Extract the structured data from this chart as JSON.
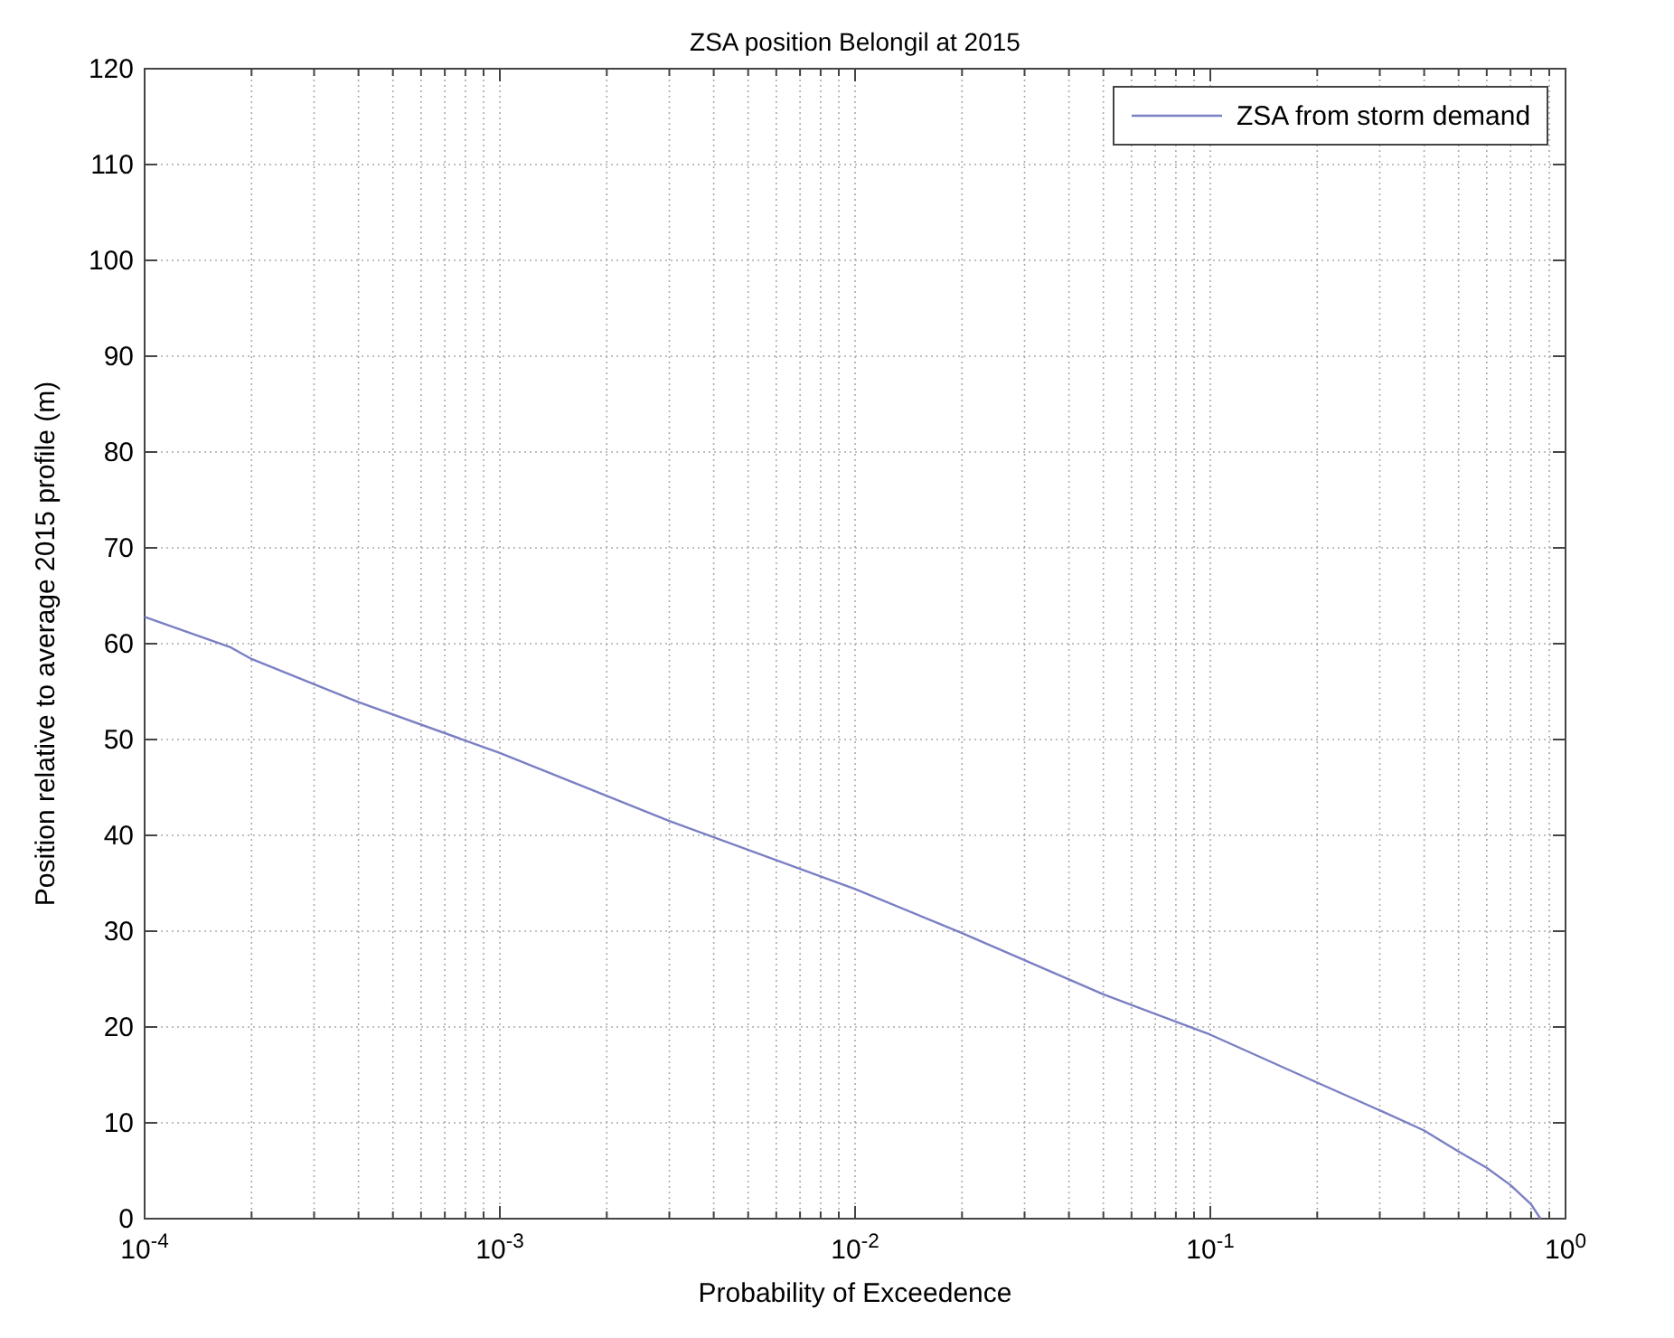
{
  "chart_data": {
    "type": "line",
    "title": "ZSA position Belongil at 2015",
    "xlabel": "Probability of Exceedence",
    "ylabel": "Position relative to average 2015 profile (m)",
    "log": "x",
    "grid": true,
    "legend": "top right",
    "line_style": "solid",
    "xlim": [
      0.0001,
      1
    ],
    "ylim": [
      0,
      120
    ],
    "xticks": [
      {
        "value": 0.0001,
        "label": "10$^{-4}$"
      },
      {
        "value": 0.0002,
        "label": null
      },
      {
        "value": 0.0003,
        "label": null
      },
      {
        "value": 0.0004,
        "label": null
      },
      {
        "value": 0.0005,
        "label": null
      },
      {
        "value": 0.0006,
        "label": null
      },
      {
        "value": 0.0007,
        "label": null
      },
      {
        "value": 0.0008,
        "label": null
      },
      {
        "value": 0.0009,
        "label": null
      },
      {
        "value": 0.001,
        "label": "10$^{-3}$"
      },
      {
        "value": 0.002,
        "label": null
      },
      {
        "value": 0.003,
        "label": null
      },
      {
        "value": 0.004,
        "label": null
      },
      {
        "value": 0.005,
        "label": null
      },
      {
        "value": 0.006,
        "label": null
      },
      {
        "value": 0.007,
        "label": null
      },
      {
        "value": 0.008,
        "label": null
      },
      {
        "value": 0.009,
        "label": null
      },
      {
        "value": 0.01,
        "label": "10$^{-2}$"
      },
      {
        "value": 0.02,
        "label": null
      },
      {
        "value": 0.03,
        "label": null
      },
      {
        "value": 0.04,
        "label": null
      },
      {
        "value": 0.05,
        "label": null
      },
      {
        "value": 0.06,
        "label": null
      },
      {
        "value": 0.07,
        "label": null
      },
      {
        "value": 0.08,
        "label": null
      },
      {
        "value": 0.09,
        "label": null
      },
      {
        "value": 0.1,
        "label": "10$^{-1}$"
      },
      {
        "value": 0.2,
        "label": null
      },
      {
        "value": 0.3,
        "label": null
      },
      {
        "value": 0.4,
        "label": null
      },
      {
        "value": 0.5,
        "label": null
      },
      {
        "value": 0.6,
        "label": null
      },
      {
        "value": 0.7,
        "label": null
      },
      {
        "value": 0.8,
        "label": null
      },
      {
        "value": 0.9,
        "label": null
      },
      {
        "value": 1,
        "label": "10$^{0}$"
      }
    ],
    "yticks": [
      0,
      10,
      20,
      30,
      40,
      50,
      60,
      70,
      80,
      90,
      100,
      110,
      120
    ],
    "series": [
      {
        "name": "ZSA from storm demand",
        "color": "#7b7fc4",
        "x": [
          0.0001,
          0.000175,
          0.0002,
          0.0004,
          0.001,
          0.003,
          0.01,
          0.02,
          0.05,
          0.1,
          0.2,
          0.3,
          0.4,
          0.5,
          0.6,
          0.7,
          0.8,
          0.85
        ],
        "values": [
          62.8,
          59.6,
          58.4,
          53.9,
          48.6,
          41.5,
          34.4,
          29.8,
          23.4,
          19.2,
          14.2,
          11.3,
          9.2,
          7.0,
          5.3,
          3.5,
          1.5,
          0
        ]
      }
    ]
  }
}
